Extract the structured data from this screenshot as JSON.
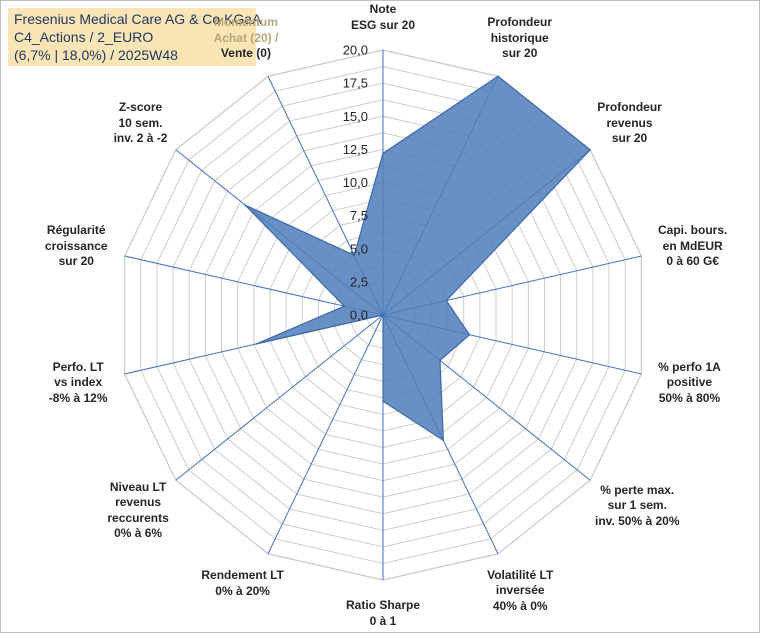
{
  "title": {
    "line1": "Fresenius Medical Care AG & Co KGaA",
    "line2": "C4_Actions / 2_EURO",
    "line3": "(6,7% | 18,0%) / 2025W48"
  },
  "colors": {
    "fill": "#4f7dbb",
    "stroke": "#3d6aa8",
    "spoke": "#4472c4",
    "grid": "#c8c8c8",
    "title_bg": "#fbe5b4"
  },
  "chart_data": {
    "type": "radar",
    "title": "Fresenius Medical Care AG & Co KGaA",
    "range": [
      0,
      20
    ],
    "ticks": [
      "0,0",
      "2,5",
      "5,0",
      "7,5",
      "10,0",
      "12,5",
      "15,0",
      "17,5",
      "20,0"
    ],
    "axes": [
      {
        "lines": [
          "Note",
          "ESG sur 20"
        ],
        "value": 12.2
      },
      {
        "lines": [
          "Profondeur",
          "historique",
          "sur 20"
        ],
        "value": 20.0
      },
      {
        "lines": [
          "Profondeur",
          "revenus",
          "sur 20"
        ],
        "value": 20.0
      },
      {
        "lines": [
          "Capi. bours.",
          "en MdEUR",
          "0 à 60 G€"
        ],
        "value": 4.9
      },
      {
        "lines": [
          "% perfo 1A",
          "positive",
          "50% à 80%"
        ],
        "value": 6.7
      },
      {
        "lines": [
          "% perte max.",
          "sur 1 sem.",
          "inv. 50% à 20%"
        ],
        "value": 5.5
      },
      {
        "lines": [
          "Volatilité LT",
          "inversée",
          "40% à 0%"
        ],
        "value": 10.5
      },
      {
        "lines": [
          "Ratio Sharpe",
          "0 à 1"
        ],
        "value": 6.5
      },
      {
        "lines": [
          "Rendement LT",
          "0% à 20%"
        ],
        "value": 0.0
      },
      {
        "lines": [
          "Niveau LT",
          "revenus",
          "reccurents",
          "0% à 6%"
        ],
        "value": 0.0
      },
      {
        "lines": [
          "Perfo. LT",
          "vs index",
          "-8% à 12%"
        ],
        "value": 9.8
      },
      {
        "lines": [
          "Régularité",
          "croissance",
          "sur 20"
        ],
        "value": 3.0
      },
      {
        "lines": [
          "Z-score",
          "10 sem.",
          "inv. 2 à -2"
        ],
        "value": 13.3
      },
      {
        "lines": [
          "Momentum",
          "Achat (20) /",
          "Vente (0)"
        ],
        "value": 5.0
      }
    ]
  }
}
